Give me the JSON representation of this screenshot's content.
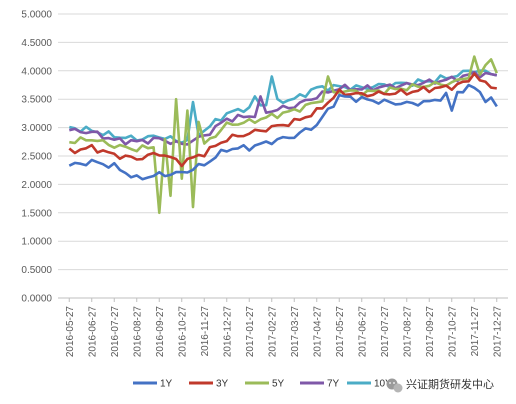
{
  "chart_data": {
    "type": "line",
    "title": "",
    "xlabel": "",
    "ylabel": "",
    "ylim": [
      0,
      5
    ],
    "yticks": [
      "0.0000",
      "0.5000",
      "1.0000",
      "1.5000",
      "2.0000",
      "2.5000",
      "3.0000",
      "3.5000",
      "4.0000",
      "4.5000",
      "5.0000"
    ],
    "categories": [
      "2016-05-27",
      "2016-06-27",
      "2016-07-27",
      "2016-08-27",
      "2016-09-27",
      "2016-10-27",
      "2016-11-27",
      "2016-12-27",
      "2017-01-27",
      "2017-02-27",
      "2017-03-27",
      "2017-04-27",
      "2017-05-27",
      "2017-06-27",
      "2017-07-27",
      "2017-08-27",
      "2017-09-27",
      "2017-10-27",
      "2017-11-27",
      "2017-12-27"
    ],
    "grid": "horizontal",
    "legend_position": "bottom",
    "series": [
      {
        "name": "1Y",
        "color": "#4472c4",
        "values": [
          2.33,
          2.4,
          2.32,
          2.1,
          2.17,
          2.2,
          2.35,
          2.62,
          2.65,
          2.76,
          2.85,
          3.05,
          3.55,
          3.5,
          3.45,
          3.42,
          3.45,
          3.6,
          3.72,
          3.4
        ],
        "spikes": [
          [
            16.5,
            1.9
          ],
          [
            17.2,
            2.5
          ],
          [
            19.6,
            2.9
          ],
          [
            21.6,
            2.05
          ],
          [
            22.6,
            2.6
          ],
          [
            33.5,
            2.75
          ],
          [
            68,
            3.3
          ],
          [
            74,
            3.45
          ]
        ]
      },
      {
        "name": "3Y",
        "color": "#c0392b",
        "values": [
          2.58,
          2.65,
          2.52,
          2.45,
          2.55,
          2.38,
          2.55,
          2.8,
          2.9,
          3.0,
          3.1,
          3.28,
          3.62,
          3.58,
          3.6,
          3.62,
          3.68,
          3.72,
          3.85,
          3.7
        ],
        "spikes": [
          [
            23.5,
            2.6
          ],
          [
            33.2,
            2.55
          ],
          [
            34.8,
            3.45
          ],
          [
            70.5,
            4.5
          ],
          [
            72,
            3.95
          ],
          [
            74.5,
            3.65
          ]
        ]
      },
      {
        "name": "5Y",
        "color": "#9bbb59",
        "values": [
          2.75,
          2.8,
          2.68,
          2.62,
          2.68,
          2.55,
          2.7,
          3.05,
          3.1,
          3.2,
          3.3,
          3.45,
          3.65,
          3.62,
          3.65,
          3.7,
          3.75,
          3.78,
          3.95,
          3.9
        ],
        "spikes": [
          [
            16,
            1.5
          ],
          [
            17,
            2.8
          ],
          [
            18,
            1.8
          ],
          [
            19,
            3.5
          ],
          [
            20,
            2.1
          ],
          [
            21,
            3.3
          ],
          [
            22,
            1.6
          ],
          [
            23,
            3.1
          ],
          [
            46,
            3.9
          ],
          [
            72,
            4.25
          ],
          [
            74,
            4.1
          ],
          [
            75,
            4.2
          ]
        ]
      },
      {
        "name": "7Y",
        "color": "#7f58a8",
        "values": [
          2.95,
          2.92,
          2.78,
          2.75,
          2.8,
          2.7,
          2.85,
          3.15,
          3.2,
          3.3,
          3.38,
          3.55,
          3.7,
          3.68,
          3.72,
          3.75,
          3.8,
          3.85,
          3.95,
          3.92
        ],
        "spikes": [
          [
            13.5,
            3.1
          ],
          [
            22.5,
            3.3
          ],
          [
            34,
            3.55
          ],
          [
            71.5,
            4.05
          ]
        ]
      },
      {
        "name": "10Y",
        "color": "#4bacc6",
        "values": [
          3.0,
          2.95,
          2.85,
          2.8,
          2.85,
          2.75,
          2.95,
          3.25,
          3.35,
          3.45,
          3.5,
          3.7,
          3.72,
          3.7,
          3.75,
          3.78,
          3.82,
          3.9,
          4.0,
          3.95
        ],
        "spikes": [
          [
            22,
            3.45
          ],
          [
            33,
            3.55
          ],
          [
            36,
            3.9
          ],
          [
            71,
            4.0
          ]
        ]
      }
    ]
  },
  "watermark": {
    "icon": "wechat-icon",
    "text": "兴证期货研发中心"
  }
}
